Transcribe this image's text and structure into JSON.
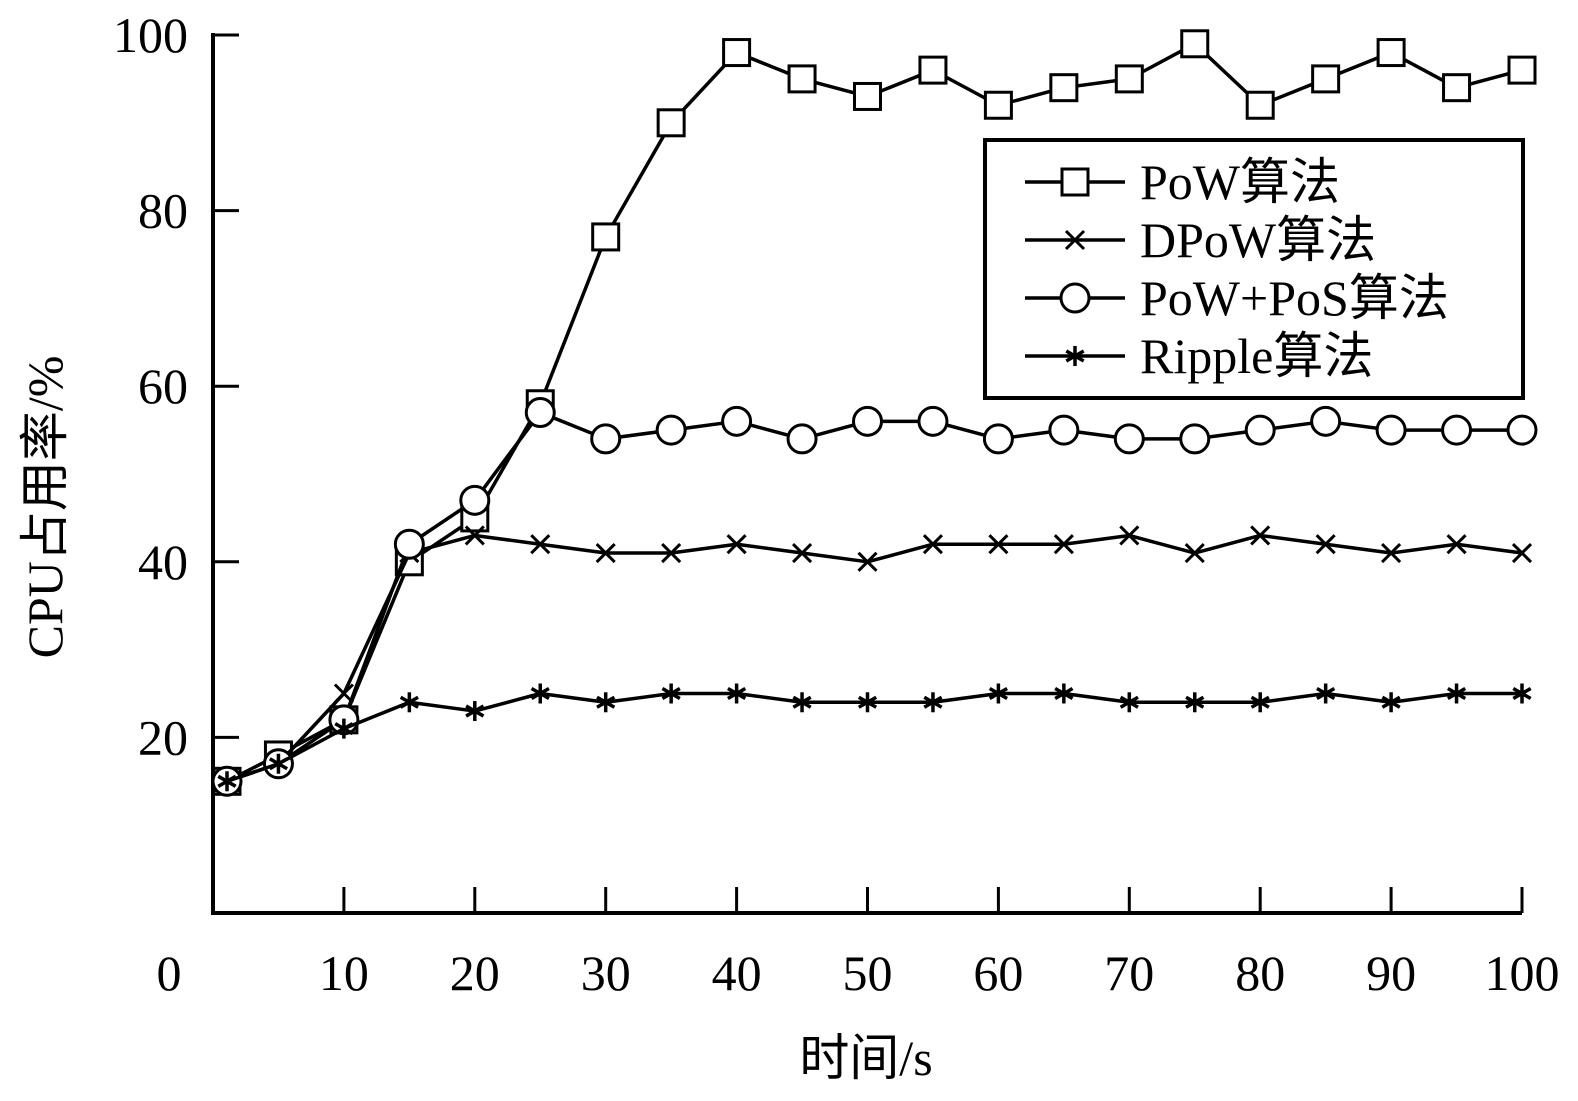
{
  "chart_data": {
    "type": "line",
    "xlabel": "时间/s",
    "ylabel": "CPU占用率/%",
    "xlim": [
      0,
      100
    ],
    "ylim": [
      0,
      100
    ],
    "x_ticks": [
      "0",
      "10",
      "20",
      "30",
      "40",
      "50",
      "60",
      "70",
      "80",
      "90",
      "100"
    ],
    "y_ticks": [
      "20",
      "40",
      "60",
      "80",
      "100"
    ],
    "grid": false,
    "legend_position": "top-right",
    "x": [
      0,
      5,
      10,
      15,
      20,
      25,
      30,
      35,
      40,
      45,
      50,
      55,
      60,
      65,
      70,
      75,
      80,
      85,
      90,
      95,
      100
    ],
    "series": [
      {
        "name": "PoW算法",
        "marker": "square",
        "values": [
          15,
          18,
          22,
          40,
          45,
          58,
          77,
          90,
          98,
          95,
          93,
          96,
          92,
          94,
          95,
          99,
          92,
          95,
          98,
          94,
          96
        ]
      },
      {
        "name": "DPoW算法",
        "marker": "x",
        "values": [
          15,
          17,
          25,
          41,
          43,
          42,
          41,
          41,
          42,
          41,
          40,
          42,
          42,
          42,
          43,
          41,
          43,
          42,
          41,
          42,
          41
        ]
      },
      {
        "name": "PoW+PoS算法",
        "marker": "circle",
        "values": [
          15,
          17,
          22,
          42,
          47,
          57,
          54,
          55,
          56,
          54,
          56,
          56,
          54,
          55,
          54,
          54,
          55,
          56,
          55,
          55,
          55
        ]
      },
      {
        "name": "Ripple算法",
        "marker": "asterisk",
        "values": [
          15,
          17,
          21,
          24,
          23,
          25,
          24,
          25,
          25,
          24,
          24,
          24,
          25,
          25,
          24,
          24,
          24,
          25,
          24,
          25,
          25
        ]
      }
    ]
  }
}
